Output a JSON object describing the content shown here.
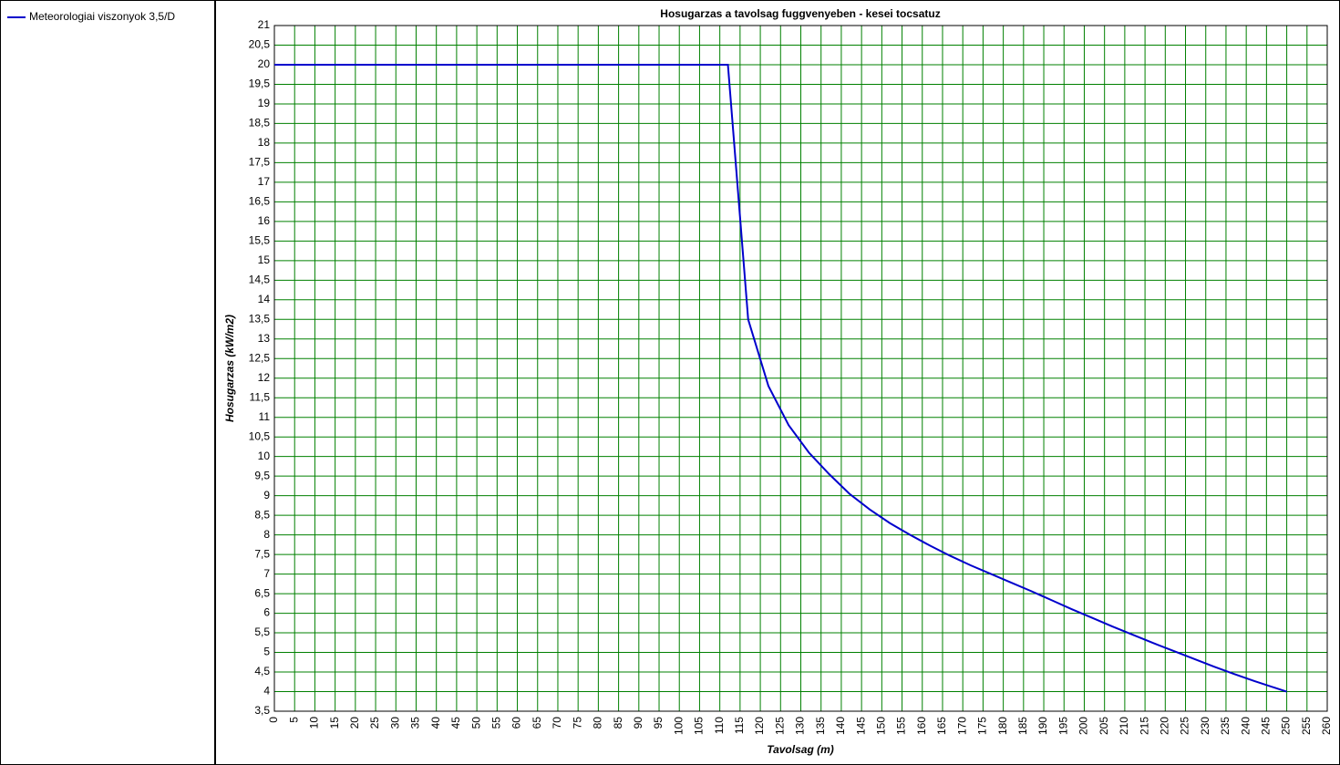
{
  "chart_data": {
    "type": "line",
    "title": "Hosugarzas a tavolsag fuggvenyeben - kesei tocsatuz",
    "x_label": "Tavolsag (m)",
    "y_label": "Hosugarzas (kW/m2)",
    "legend_position": "left-panel",
    "grid": true,
    "grid_color": "#008000",
    "xlim": [
      0,
      260
    ],
    "xticks": [
      0,
      5,
      10,
      15,
      20,
      25,
      30,
      35,
      40,
      45,
      50,
      55,
      60,
      65,
      70,
      75,
      80,
      85,
      90,
      95,
      100,
      105,
      110,
      115,
      120,
      125,
      130,
      135,
      140,
      145,
      150,
      155,
      160,
      165,
      170,
      175,
      180,
      185,
      190,
      195,
      200,
      205,
      210,
      215,
      220,
      225,
      230,
      235,
      240,
      245,
      250,
      255,
      260
    ],
    "ylim": [
      3.5,
      21
    ],
    "yticks": [
      {
        "value": 3.5,
        "label": "3,5"
      },
      4,
      {
        "value": 4.5,
        "label": "4,5"
      },
      5,
      {
        "value": 5.5,
        "label": "5,5"
      },
      6,
      {
        "value": 6.5,
        "label": "6,5"
      },
      7,
      {
        "value": 7.5,
        "label": "7,5"
      },
      8,
      {
        "value": 8.5,
        "label": "8,5"
      },
      9,
      {
        "value": 9.5,
        "label": "9,5"
      },
      10,
      {
        "value": 10.5,
        "label": "10,5"
      },
      11,
      {
        "value": 11.5,
        "label": "11,5"
      },
      12,
      {
        "value": 12.5,
        "label": "12,5"
      },
      13,
      {
        "value": 13.5,
        "label": "13,5"
      },
      14,
      {
        "value": 14.5,
        "label": "14,5"
      },
      15,
      {
        "value": 15.5,
        "label": "15,5"
      },
      16,
      {
        "value": 16.5,
        "label": "16,5"
      },
      17,
      {
        "value": 17.5,
        "label": "17,5"
      },
      18,
      {
        "value": 18.5,
        "label": "18,5"
      },
      19,
      {
        "value": 19.5,
        "label": "19,5"
      },
      20,
      {
        "value": 20.5,
        "label": "20,5"
      },
      21
    ],
    "x": [
      0,
      112,
      117,
      122,
      127,
      132,
      137,
      142,
      147,
      152,
      157,
      162,
      167,
      172,
      177,
      182,
      187,
      192,
      197,
      202,
      207,
      212,
      217,
      222,
      227,
      232,
      237,
      242,
      247,
      250
    ],
    "series": [
      {
        "name": "Meteorologiai viszonyok 3,5/D",
        "color": "#0000cc",
        "values": [
          20,
          20,
          13.5,
          11.8,
          10.8,
          10.1,
          9.55,
          9.05,
          8.65,
          8.3,
          8.0,
          7.72,
          7.46,
          7.22,
          7.0,
          6.78,
          6.56,
          6.33,
          6.1,
          5.88,
          5.66,
          5.45,
          5.24,
          5.04,
          4.84,
          4.64,
          4.45,
          4.27,
          4.1,
          4.0
        ]
      }
    ]
  }
}
